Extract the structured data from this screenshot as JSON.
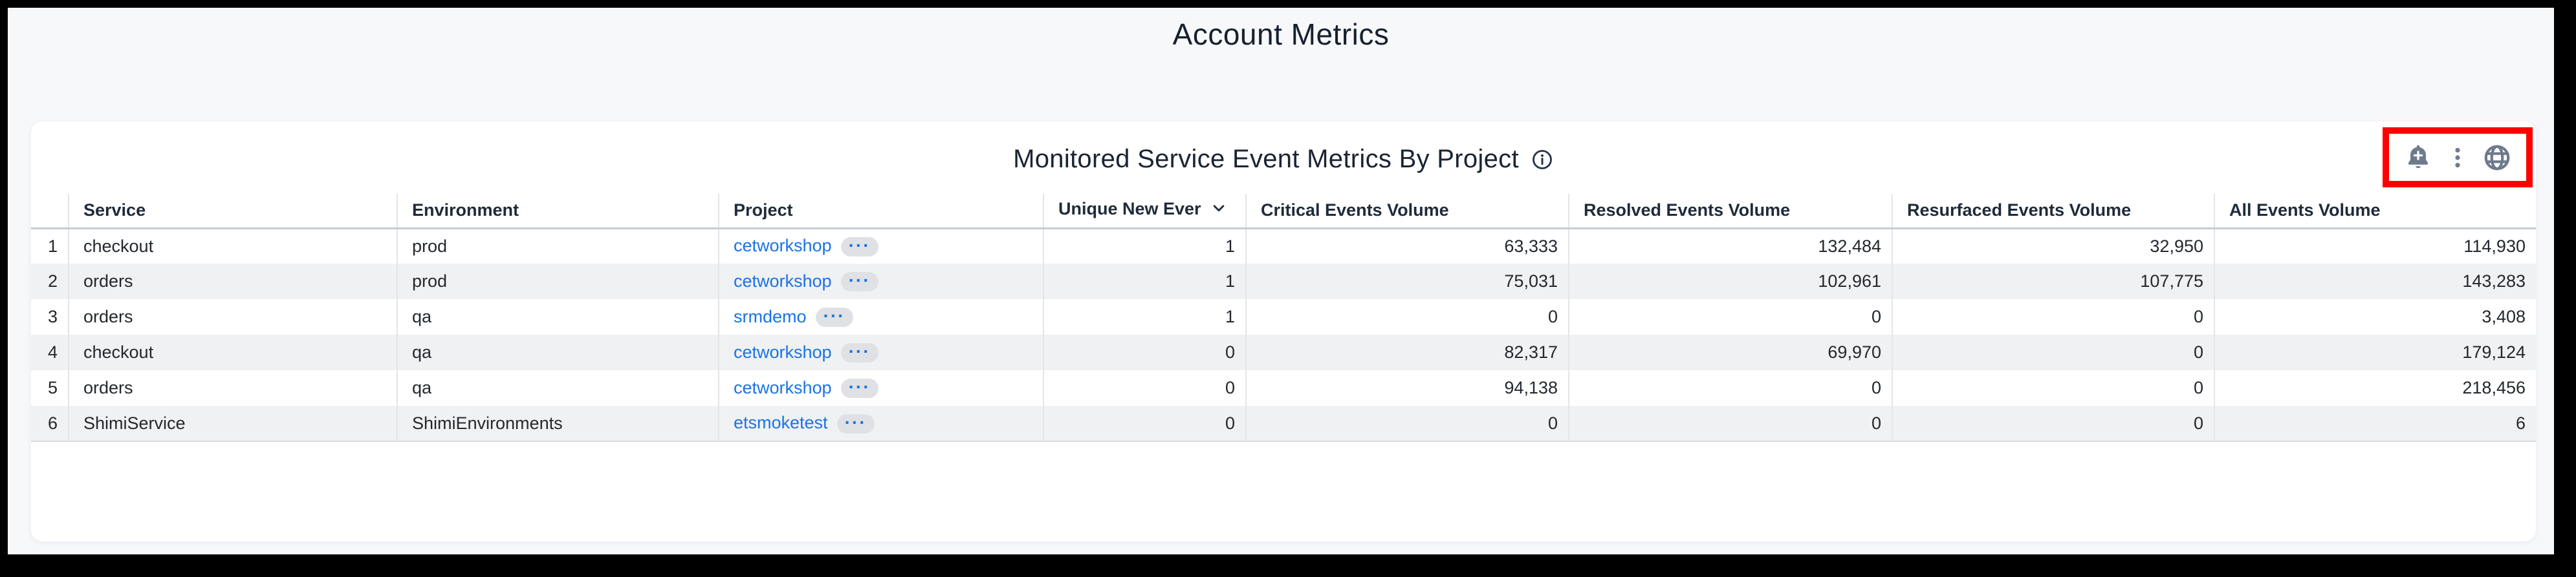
{
  "page": {
    "title": "Account Metrics"
  },
  "panel": {
    "title": "Monitored Service Event Metrics By Project",
    "toolbar": {
      "icons": [
        "add-alert-bell",
        "kebab-menu",
        "globe"
      ],
      "highlight_color": "#ff0000"
    }
  },
  "table": {
    "ellipsis": "···",
    "sorted_column": "unique_new_ever",
    "sort_direction": "desc",
    "columns": [
      {
        "key": "num",
        "label": "",
        "align": "right",
        "sortable": false
      },
      {
        "key": "service",
        "label": "Service",
        "align": "left",
        "sortable": true
      },
      {
        "key": "environment",
        "label": "Environment",
        "align": "left",
        "sortable": true
      },
      {
        "key": "project",
        "label": "Project",
        "align": "left",
        "sortable": true
      },
      {
        "key": "unique_new_ever",
        "label": "Unique New Ever",
        "align": "left",
        "sortable": true
      },
      {
        "key": "critical_events_volume",
        "label": "Critical Events Volume",
        "align": "left",
        "sortable": true
      },
      {
        "key": "resolved_events_volume",
        "label": "Resolved Events Volume",
        "align": "left",
        "sortable": true
      },
      {
        "key": "resurfaced_events_volume",
        "label": "Resurfaced Events Volume",
        "align": "left",
        "sortable": true
      },
      {
        "key": "all_events_volume",
        "label": "All Events Volume",
        "align": "left",
        "sortable": true
      }
    ],
    "rows": [
      {
        "num": "1",
        "service": "checkout",
        "environment": "prod",
        "project": "cetworkshop",
        "unique_new_ever": "1",
        "critical_events_volume": "63,333",
        "resolved_events_volume": "132,484",
        "resurfaced_events_volume": "32,950",
        "all_events_volume": "114,930"
      },
      {
        "num": "2",
        "service": "orders",
        "environment": "prod",
        "project": "cetworkshop",
        "unique_new_ever": "1",
        "critical_events_volume": "75,031",
        "resolved_events_volume": "102,961",
        "resurfaced_events_volume": "107,775",
        "all_events_volume": "143,283"
      },
      {
        "num": "3",
        "service": "orders",
        "environment": "qa",
        "project": "srmdemo",
        "unique_new_ever": "1",
        "critical_events_volume": "0",
        "resolved_events_volume": "0",
        "resurfaced_events_volume": "0",
        "all_events_volume": "3,408"
      },
      {
        "num": "4",
        "service": "checkout",
        "environment": "qa",
        "project": "cetworkshop",
        "unique_new_ever": "0",
        "critical_events_volume": "82,317",
        "resolved_events_volume": "69,970",
        "resurfaced_events_volume": "0",
        "all_events_volume": "179,124"
      },
      {
        "num": "5",
        "service": "orders",
        "environment": "qa",
        "project": "cetworkshop",
        "unique_new_ever": "0",
        "critical_events_volume": "94,138",
        "resolved_events_volume": "0",
        "resurfaced_events_volume": "0",
        "all_events_volume": "218,456"
      },
      {
        "num": "6",
        "service": "ShimiService",
        "environment": "ShimiEnvironments",
        "project": "etsmoketest",
        "unique_new_ever": "0",
        "critical_events_volume": "0",
        "resolved_events_volume": "0",
        "resurfaced_events_volume": "0",
        "all_events_volume": "6"
      }
    ]
  },
  "colors": {
    "link": "#1a73e8",
    "annotation_box": "#ff0000",
    "toolbar_icon": "#6e7b8c",
    "zebra_stripe": "#f0f1f2",
    "title_text": "#1a2433"
  }
}
